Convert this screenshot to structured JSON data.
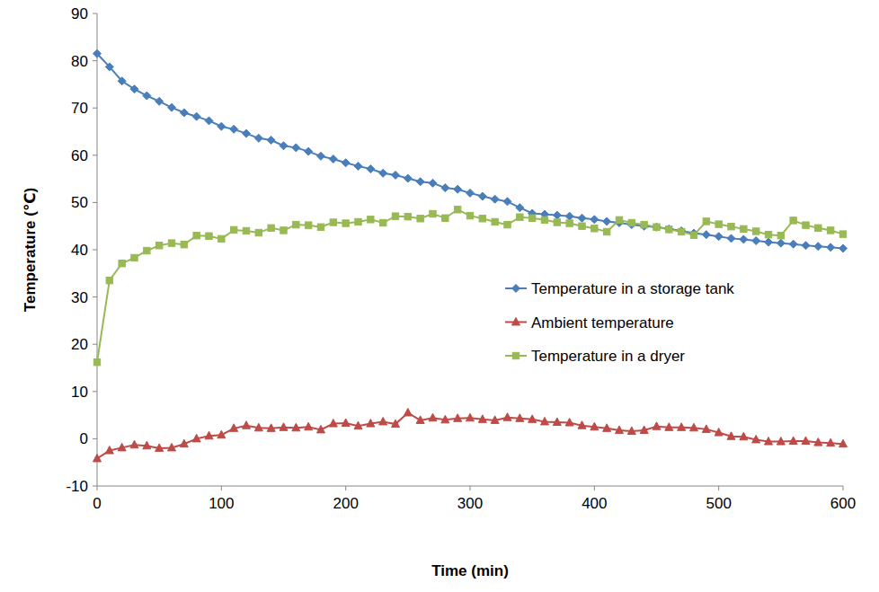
{
  "chart_data": {
    "type": "line",
    "x_label": "Time (min)",
    "y_label": "Temperature (℃)",
    "x": [
      0,
      10,
      20,
      30,
      40,
      50,
      60,
      70,
      80,
      90,
      100,
      110,
      120,
      130,
      140,
      150,
      160,
      170,
      180,
      190,
      200,
      210,
      220,
      230,
      240,
      250,
      260,
      270,
      280,
      290,
      300,
      310,
      320,
      330,
      340,
      350,
      360,
      370,
      380,
      390,
      400,
      410,
      420,
      430,
      440,
      450,
      460,
      470,
      480,
      490,
      500,
      510,
      520,
      530,
      540,
      550,
      560,
      570,
      580,
      590,
      600
    ],
    "series": [
      {
        "name": "Temperature in a storage tank",
        "color": "#4a7ebb",
        "marker": "diamond",
        "values": [
          81.5,
          78.7,
          75.7,
          74,
          72.6,
          71.4,
          70.1,
          69,
          68.2,
          67.3,
          66.1,
          65.5,
          64.6,
          63.6,
          63.2,
          62,
          61.6,
          60.8,
          59.8,
          59.2,
          58.4,
          57.7,
          57.1,
          56.2,
          55.8,
          55.1,
          54.4,
          54.1,
          53.1,
          52.8,
          52,
          51.3,
          50.7,
          50.2,
          48.9,
          47.7,
          47.5,
          47.3,
          47.1,
          46.7,
          46.4,
          46,
          45.7,
          45.3,
          45,
          44.8,
          44.4,
          44,
          43.5,
          43.2,
          42.8,
          42.4,
          42.2,
          41.9,
          41.6,
          41.4,
          41.2,
          40.9,
          40.7,
          40.5,
          40.3
        ]
      },
      {
        "name": "Ambient temperature",
        "color": "#be4b48",
        "marker": "triangle",
        "values": [
          -4.2,
          -2.5,
          -1.9,
          -1.3,
          -1.5,
          -2,
          -1.9,
          -1.1,
          0,
          0.6,
          0.8,
          2.2,
          2.8,
          2.3,
          2.2,
          2.4,
          2.3,
          2.5,
          1.9,
          3.2,
          3.3,
          2.7,
          3.2,
          3.6,
          3.1,
          5.5,
          3.9,
          4.4,
          4,
          4.3,
          4.4,
          4.1,
          3.9,
          4.5,
          4.3,
          4.1,
          3.6,
          3.5,
          3.4,
          2.8,
          2.5,
          2.2,
          1.8,
          1.6,
          1.8,
          2.6,
          2.4,
          2.4,
          2.3,
          2,
          1.3,
          0.5,
          0.4,
          -0.2,
          -0.6,
          -0.6,
          -0.5,
          -0.5,
          -0.8,
          -0.9,
          -1.1
        ]
      },
      {
        "name": "Temperature in a dryer",
        "color": "#98b954",
        "marker": "square",
        "values": [
          16.2,
          33.5,
          37.1,
          38.3,
          39.8,
          40.9,
          41.4,
          41.1,
          43,
          42.9,
          42.3,
          44.2,
          44,
          43.6,
          44.6,
          44.1,
          45.3,
          45.2,
          44.8,
          45.8,
          45.6,
          45.9,
          46.4,
          45.7,
          47.1,
          47,
          46.6,
          47.6,
          46.7,
          48.5,
          47.2,
          46.6,
          45.9,
          45.3,
          46.9,
          46.7,
          46.3,
          45.8,
          45.6,
          45,
          44.5,
          43.8,
          46.3,
          45.7,
          45.3,
          44.8,
          44.3,
          43.8,
          43.1,
          46,
          45.4,
          44.9,
          44.4,
          43.9,
          43.2,
          43,
          46.2,
          45.2,
          44.6,
          44.1,
          43.3
        ]
      }
    ],
    "xlim": [
      0,
      600
    ],
    "xticks": [
      0,
      100,
      200,
      300,
      400,
      500,
      600
    ],
    "ylim": [
      -10,
      90
    ],
    "yticks": [
      -10,
      0,
      10,
      20,
      30,
      40,
      50,
      60,
      70,
      80,
      90
    ],
    "grid": false,
    "legend": "right"
  }
}
